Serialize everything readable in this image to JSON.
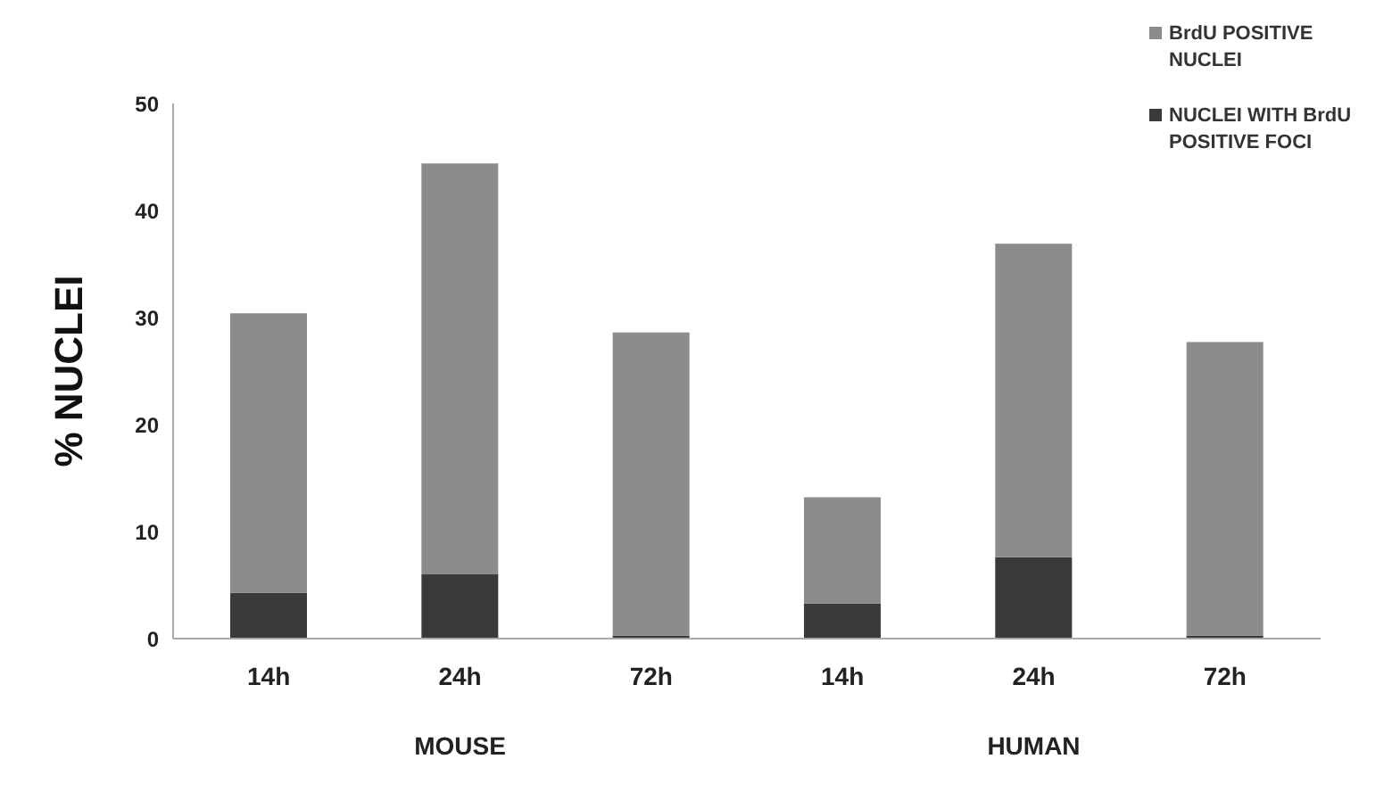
{
  "chart_data": {
    "type": "bar",
    "stacked": true,
    "ylabel": "% NUCLEI",
    "categories": [
      "14h",
      "24h",
      "72h",
      "14h",
      "24h",
      "72h"
    ],
    "series": [
      {
        "name": "NUCLEI WITH BrdU POSITIVE FOCI",
        "color": "#3a3a3a",
        "values": [
          4.3,
          6.0,
          0.3,
          3.3,
          7.6,
          0.3
        ]
      },
      {
        "name": "BrdU POSITIVE NUCLEI",
        "color": "#8c8c8c",
        "values": [
          26.1,
          38.4,
          28.3,
          9.9,
          29.3,
          27.4
        ]
      }
    ],
    "ylim": [
      0,
      50
    ],
    "yticks": [
      0,
      10,
      20,
      30,
      40,
      50
    ],
    "grid": false,
    "legend": "top right",
    "annotations": [
      "MOUSE",
      "HUMAN"
    ]
  }
}
